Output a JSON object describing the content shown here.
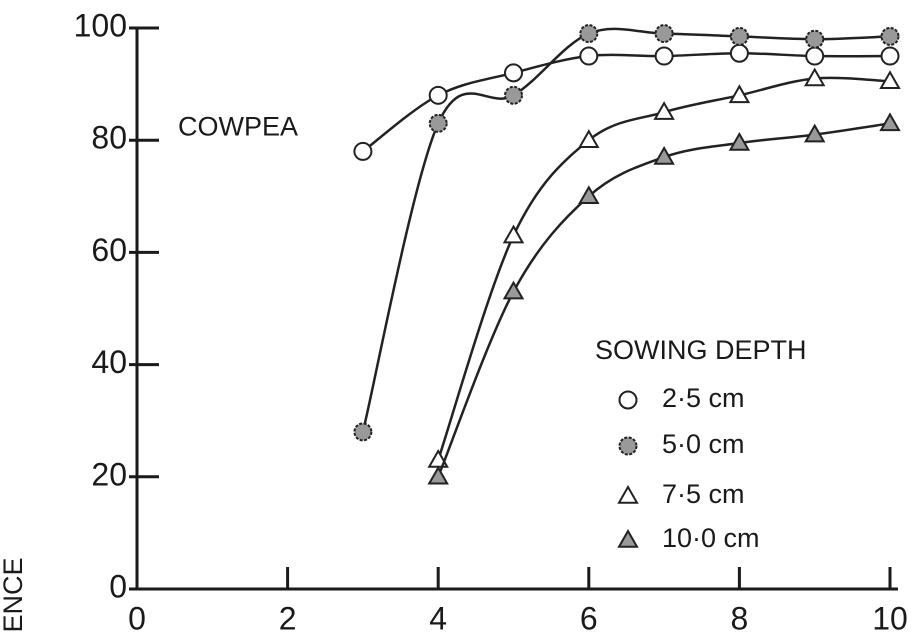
{
  "chart_data": {
    "type": "line",
    "ylabel": "ENCE",
    "annotation": "COWPEA",
    "legend_title": "SOWING DEPTH",
    "legend": "lower right",
    "xlim": [
      0,
      10
    ],
    "xticks": [
      0,
      2,
      4,
      6,
      8,
      10
    ],
    "ylim": [
      0,
      100
    ],
    "yticks": [
      0,
      20,
      40,
      60,
      80,
      100
    ],
    "series": [
      {
        "name": "2·5 cm",
        "color": "#222222",
        "marker": "circle-open",
        "x": [
          3,
          4,
          5,
          6,
          7,
          8,
          9,
          10
        ],
        "values": [
          78,
          88,
          92,
          95,
          95,
          95.5,
          95,
          95
        ]
      },
      {
        "name": "5·0 cm",
        "color": "#222222",
        "marker": "circle-dotted",
        "x": [
          3,
          4,
          5,
          6,
          7,
          8,
          9,
          10
        ],
        "values": [
          28,
          83,
          88,
          99,
          99,
          98.5,
          98,
          98.5
        ]
      },
      {
        "name": "7·5 cm",
        "color": "#222222",
        "marker": "triangle-open",
        "x": [
          4,
          5,
          6,
          7,
          8,
          9,
          10
        ],
        "values": [
          23,
          63,
          80,
          85,
          88,
          91,
          90.5
        ]
      },
      {
        "name": "10·0 cm",
        "color": "#222222",
        "marker": "triangle-dotted",
        "x": [
          4,
          5,
          6,
          7,
          8,
          9,
          10
        ],
        "values": [
          20,
          53,
          70,
          77,
          79.5,
          81,
          83
        ]
      }
    ]
  }
}
